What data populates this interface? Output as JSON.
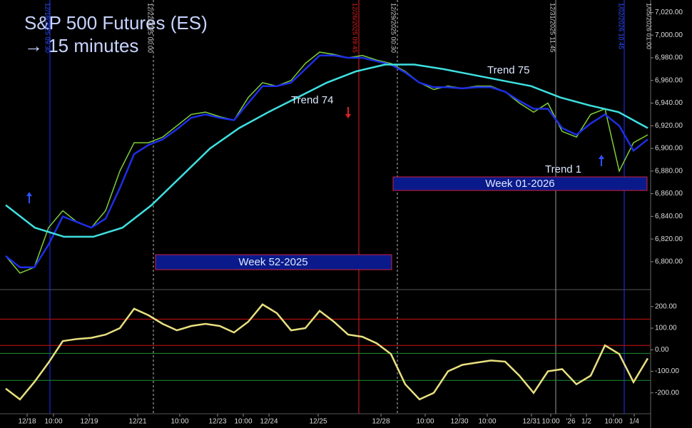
{
  "title": "S&P 500 Futures (ES)",
  "subtitle": "→ 15 minutes",
  "time_axis": {
    "labels": [
      "12/18",
      "10:00",
      "12/19",
      "12/21",
      "10:00",
      "12/23",
      "10:00",
      "12/24",
      "12/25",
      "12/28",
      "10:00",
      "12/30",
      "10:00",
      "12/31",
      "10:00",
      "'26",
      "1/2",
      "10:00",
      "1/4"
    ]
  },
  "vline_labels": [
    "12/18/2025 09:30",
    "12/22/2025 00:00",
    "12/26/2025 09:45",
    "12/29/2025 00:30",
    "12/31/2025 11:45",
    "1/02/2026 10:45",
    "1/05/2026 01:00"
  ],
  "chart_data": [
    {
      "type": "line",
      "annotations": [
        "Trend 74",
        "Trend 75",
        "Trend 1",
        "Week 52-2025",
        "Week 01-2026"
      ],
      "ylim": [
        6776,
        7031
      ],
      "yticks": [
        {
          "value": 6800,
          "label": "6,800.00"
        },
        {
          "value": 6820,
          "label": "6,820.00"
        },
        {
          "value": 6840,
          "label": "6,840.00"
        },
        {
          "value": 6860,
          "label": "6,860.00"
        },
        {
          "value": 6880,
          "label": "6,880.00"
        },
        {
          "value": 6900,
          "label": "6,900.00"
        },
        {
          "value": 6920,
          "label": "6,920.00"
        },
        {
          "value": 6940,
          "label": "6,940.00"
        },
        {
          "value": 6960,
          "label": "6,960.00"
        },
        {
          "value": 6980,
          "label": "6,980.00"
        },
        {
          "value": 7000,
          "label": "7,000.00"
        },
        {
          "value": 7020,
          "label": "7,020.00"
        }
      ],
      "series": [
        {
          "color": "#7ccf3a",
          "values": [
            6805,
            6790,
            6795,
            6830,
            6845,
            6835,
            6830,
            6845,
            6880,
            6905,
            6905,
            6910,
            6920,
            6930,
            6932,
            6928,
            6925,
            6945,
            6958,
            6955,
            6960,
            6975,
            6985,
            6983,
            6980,
            6982,
            6978,
            6975,
            6968,
            6958,
            6952,
            6955,
            6953,
            6955,
            6955,
            6950,
            6940,
            6932,
            6940,
            6915,
            6910,
            6930,
            6935,
            6880,
            6905,
            6912
          ]
        },
        {
          "color": "#1e2ee6",
          "values": [
            6805,
            6795,
            6795,
            6815,
            6840,
            6835,
            6830,
            6838,
            6865,
            6895,
            6903,
            6908,
            6917,
            6927,
            6930,
            6927,
            6925,
            6940,
            6955,
            6955,
            6958,
            6970,
            6982,
            6982,
            6980,
            6980,
            6977,
            6974,
            6967,
            6958,
            6954,
            6954,
            6953,
            6954,
            6954,
            6950,
            6942,
            6935,
            6935,
            6918,
            6912,
            6922,
            6930,
            6920,
            6898,
            6908
          ]
        },
        {
          "color": "#3fe0e0",
          "values": [
            6850,
            6830,
            6822,
            6822,
            6830,
            6850,
            6875,
            6900,
            6918,
            6932,
            6945,
            6958,
            6968,
            6974,
            6974,
            6970,
            6965,
            6960,
            6955,
            6945,
            6938,
            6932,
            6918
          ]
        }
      ]
    },
    {
      "type": "line",
      "ylim": [
        -290,
        272
      ],
      "yticks": [
        {
          "value": 200,
          "label": "200.00"
        },
        {
          "value": 100,
          "label": "100.00"
        },
        {
          "value": 0,
          "label": "0.00"
        },
        {
          "value": -100,
          "label": "-100.00"
        },
        {
          "value": -200,
          "label": "-200.00"
        }
      ],
      "reference_lines": [
        {
          "value": 142,
          "color": "#d01010"
        },
        {
          "value": 20,
          "color": "#d01010"
        },
        {
          "value": -17,
          "color": "#1f8f2f"
        },
        {
          "value": -142,
          "color": "#1f8f2f"
        }
      ],
      "series": [
        {
          "color": "#e8e080",
          "values": [
            -180,
            -230,
            -150,
            -60,
            40,
            50,
            55,
            70,
            100,
            190,
            160,
            120,
            90,
            110,
            120,
            110,
            80,
            130,
            210,
            170,
            90,
            100,
            180,
            130,
            70,
            60,
            30,
            -20,
            -160,
            -230,
            -200,
            -100,
            -70,
            -60,
            -50,
            -55,
            -120,
            -200,
            -100,
            -90,
            -160,
            -120,
            20,
            -20,
            -150,
            -40
          ]
        }
      ]
    }
  ]
}
